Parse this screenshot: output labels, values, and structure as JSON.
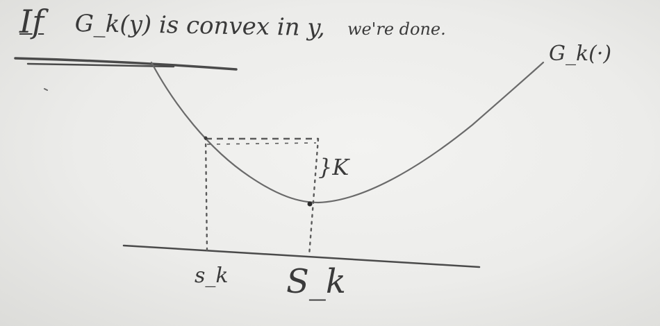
{
  "title": {
    "text_if": "If",
    "text_main": "G_k(y) is convex in y,",
    "text_done": "we're done."
  },
  "labels": {
    "curve": "G_k(·)",
    "k": "}K",
    "s_small": "s_k",
    "s_big": "S_k"
  },
  "colors": {
    "board": "#ececea",
    "ink": "#3a3a3a",
    "curve": "#6a6a6a"
  }
}
